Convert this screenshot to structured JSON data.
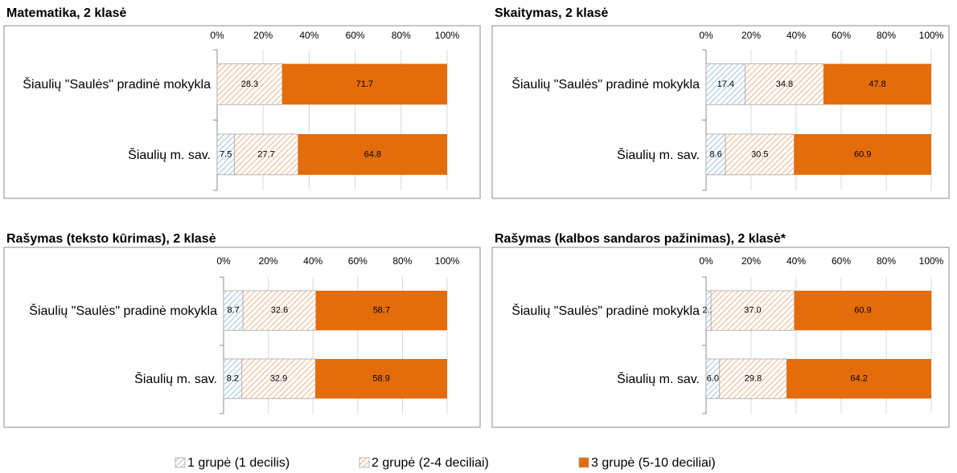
{
  "chart_data": [
    {
      "type": "stacked_barh",
      "title": "Matematika, 2 klasė",
      "categories": [
        "Šiaulių \"Saulės\" pradinė mokykla",
        "Šiaulių m. sav."
      ],
      "series": [
        {
          "values": [
            0,
            7.5
          ],
          "value_labels": [
            null,
            "7.5"
          ]
        },
        {
          "values": [
            28.3,
            27.7
          ],
          "value_labels": [
            "28.3",
            "27.7"
          ]
        },
        {
          "values": [
            71.7,
            64.8
          ],
          "value_labels": [
            "71.7",
            "64.8"
          ]
        }
      ],
      "xlim": [
        0,
        100
      ],
      "xticks": [
        {
          "value": 0,
          "label": "0%"
        },
        {
          "value": 20,
          "label": "20%"
        },
        {
          "value": 40,
          "label": "40%"
        },
        {
          "value": 60,
          "label": "60%"
        },
        {
          "value": 80,
          "label": "80%"
        },
        {
          "value": 100,
          "label": "100%"
        }
      ],
      "grid": true
    },
    {
      "type": "stacked_barh",
      "title": "Skaitymas, 2 klasė",
      "categories": [
        "Šiaulių \"Saulės\" pradinė mokykla",
        "Šiaulių m. sav."
      ],
      "series": [
        {
          "values": [
            17.4,
            8.6
          ],
          "value_labels": [
            "17.4",
            "8.6"
          ]
        },
        {
          "values": [
            34.8,
            30.5
          ],
          "value_labels": [
            "34.8",
            "30.5"
          ]
        },
        {
          "values": [
            47.8,
            60.9
          ],
          "value_labels": [
            "47.8",
            "60.9"
          ]
        }
      ],
      "xlim": [
        0,
        100
      ],
      "xticks": [
        {
          "value": 0,
          "label": "0%"
        },
        {
          "value": 20,
          "label": "20%"
        },
        {
          "value": 40,
          "label": "40%"
        },
        {
          "value": 60,
          "label": "60%"
        },
        {
          "value": 80,
          "label": "80%"
        },
        {
          "value": 100,
          "label": "100%"
        }
      ],
      "grid": true
    },
    {
      "type": "stacked_barh",
      "title": "Rašymas (teksto kūrimas), 2 klasė",
      "categories": [
        "Šiaulių \"Saulės\" pradinė mokykla",
        "Šiaulių m. sav."
      ],
      "series": [
        {
          "values": [
            8.7,
            8.2
          ],
          "value_labels": [
            "8.7",
            "8.2"
          ]
        },
        {
          "values": [
            32.6,
            32.9
          ],
          "value_labels": [
            "32.6",
            "32.9"
          ]
        },
        {
          "values": [
            58.7,
            58.9
          ],
          "value_labels": [
            "58.7",
            "58.9"
          ]
        }
      ],
      "xlim": [
        0,
        100
      ],
      "xticks": [
        {
          "value": 0,
          "label": "0%"
        },
        {
          "value": 20,
          "label": "20%"
        },
        {
          "value": 40,
          "label": "40%"
        },
        {
          "value": 60,
          "label": "60%"
        },
        {
          "value": 80,
          "label": "80%"
        },
        {
          "value": 100,
          "label": "100%"
        }
      ],
      "grid": true
    },
    {
      "type": "stacked_barh",
      "title": "Rašymas (kalbos sandaros pažinimas), 2 klasė*",
      "categories": [
        "Šiaulių \"Saulės\" pradinė mokykla",
        "Šiaulių m. sav."
      ],
      "series": [
        {
          "values": [
            2.2,
            6.0
          ],
          "value_labels": [
            "2.2",
            "6.0"
          ]
        },
        {
          "values": [
            37.0,
            29.8
          ],
          "value_labels": [
            "37.0",
            "29.8"
          ]
        },
        {
          "values": [
            60.9,
            64.2
          ],
          "value_labels": [
            "60.9",
            "64.2"
          ]
        }
      ],
      "xlim": [
        0,
        100
      ],
      "xticks": [
        {
          "value": 0,
          "label": "0%"
        },
        {
          "value": 20,
          "label": "20%"
        },
        {
          "value": 40,
          "label": "40%"
        },
        {
          "value": 60,
          "label": "60%"
        },
        {
          "value": 80,
          "label": "80%"
        },
        {
          "value": 100,
          "label": "100%"
        }
      ],
      "grid": true
    }
  ],
  "legend": [
    {
      "name": "1 grupė (1 decilis)",
      "color": "#9dc3e6",
      "hatch": true
    },
    {
      "name": "2 grupė (2-4 deciliai)",
      "color": "#f4b183",
      "hatch": true
    },
    {
      "name": "3 grupė (5-10 deciliai)",
      "color": "#e46c0a",
      "hatch": false
    }
  ]
}
